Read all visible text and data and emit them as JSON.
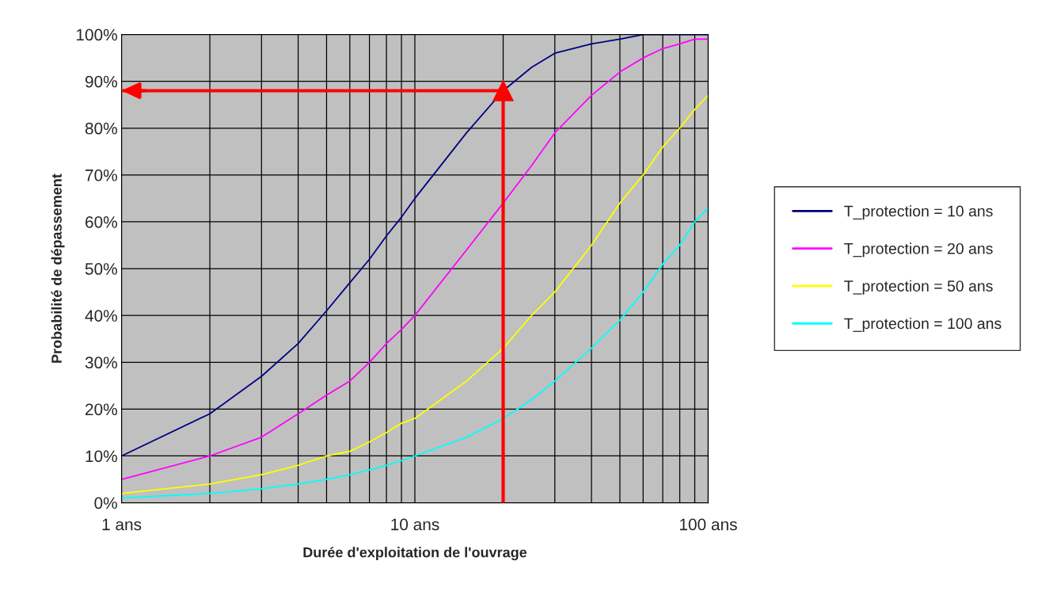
{
  "chart_data": {
    "type": "line",
    "xlabel": "Durée d'exploitation de l'ouvrage",
    "ylabel": "Probabilité de dépassement",
    "x": [
      1,
      2,
      3,
      4,
      5,
      6,
      7,
      8,
      9,
      10,
      15,
      20,
      25,
      30,
      40,
      50,
      60,
      70,
      80,
      90,
      100
    ],
    "series": [
      {
        "name": "T_protection = 10 ans",
        "color": "#000080",
        "values": [
          10,
          19,
          27,
          34,
          41,
          47,
          52,
          57,
          61,
          65,
          79,
          88,
          93,
          96,
          98,
          99,
          100,
          100,
          100,
          100,
          100
        ]
      },
      {
        "name": "T_protection = 20 ans",
        "color": "#ff00ff",
        "values": [
          5,
          10,
          14,
          19,
          23,
          26,
          30,
          34,
          37,
          40,
          54,
          64,
          72,
          79,
          87,
          92,
          95,
          97,
          98,
          99,
          99
        ]
      },
      {
        "name": "T_protection = 50 ans",
        "color": "#ffff00",
        "values": [
          2,
          4,
          6,
          8,
          10,
          11,
          13,
          15,
          17,
          18,
          26,
          33,
          40,
          45,
          55,
          64,
          70,
          76,
          80,
          84,
          87
        ]
      },
      {
        "name": "T_protection = 100 ans",
        "color": "#00ffff",
        "values": [
          1,
          2,
          3,
          4,
          5,
          6,
          7,
          8,
          9,
          10,
          14,
          18,
          22,
          26,
          33,
          39,
          45,
          51,
          55,
          60,
          63
        ]
      }
    ],
    "log": "x",
    "xlim": [
      1,
      100
    ],
    "xticks": [
      {
        "value": 1,
        "label": "1 ans"
      },
      {
        "value": 10,
        "label": "10 ans"
      },
      {
        "value": 100,
        "label": "100 ans"
      }
    ],
    "ylim": [
      0,
      100
    ],
    "yticks": [
      {
        "value": 0,
        "label": "0%"
      },
      {
        "value": 10,
        "label": "10%"
      },
      {
        "value": 20,
        "label": "20%"
      },
      {
        "value": 30,
        "label": "30%"
      },
      {
        "value": 40,
        "label": "40%"
      },
      {
        "value": 50,
        "label": "50%"
      },
      {
        "value": 60,
        "label": "60%"
      },
      {
        "value": 70,
        "label": "70%"
      },
      {
        "value": 80,
        "label": "80%"
      },
      {
        "value": 90,
        "label": "90%"
      },
      {
        "value": 100,
        "label": "100%"
      }
    ],
    "grid": true,
    "legend": "right",
    "marker": "none",
    "line_style": "solid",
    "ref_lines": [
      {
        "axis": "x",
        "value": 20,
        "color": "#ff0000"
      },
      {
        "axis": "y",
        "value": 88,
        "color": "#ff0000"
      }
    ]
  }
}
